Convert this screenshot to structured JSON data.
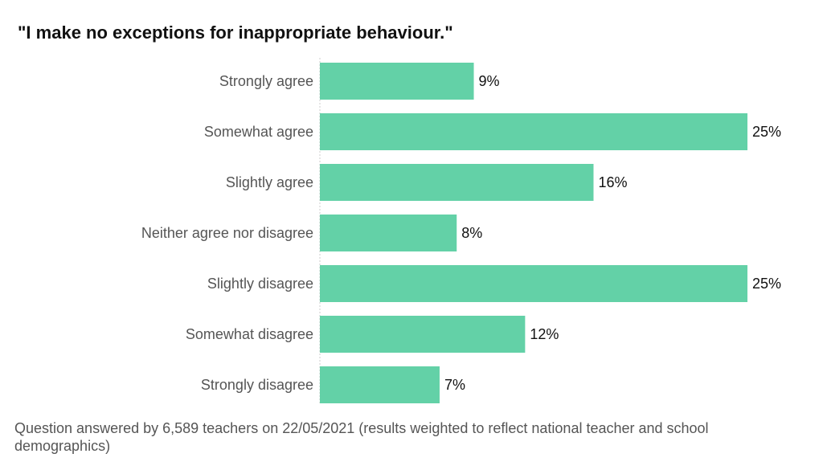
{
  "title": "\"I make no exceptions for inappropriate behaviour.\"",
  "footnote": "Question answered by 6,589 teachers on 22/05/2021 (results weighted to reflect national teacher and school demographics)",
  "colors": {
    "bar": "#63d1a7",
    "axis": "#cccccc",
    "category_text": "#555555",
    "value_text": "#111111"
  },
  "chart_data": {
    "type": "bar",
    "orientation": "horizontal",
    "title": "\"I make no exceptions for inappropriate behaviour.\"",
    "categories": [
      "Strongly agree",
      "Somewhat agree",
      "Slightly agree",
      "Neither agree nor disagree",
      "Slightly disagree",
      "Somewhat disagree",
      "Strongly disagree"
    ],
    "values": [
      9,
      25,
      16,
      8,
      25,
      12,
      7
    ],
    "labels": [
      "9%",
      "25%",
      "16%",
      "8%",
      "25%",
      "12%",
      "7%"
    ],
    "xlim": [
      0,
      25
    ],
    "unit": "%",
    "grid": false,
    "legend": "none"
  }
}
